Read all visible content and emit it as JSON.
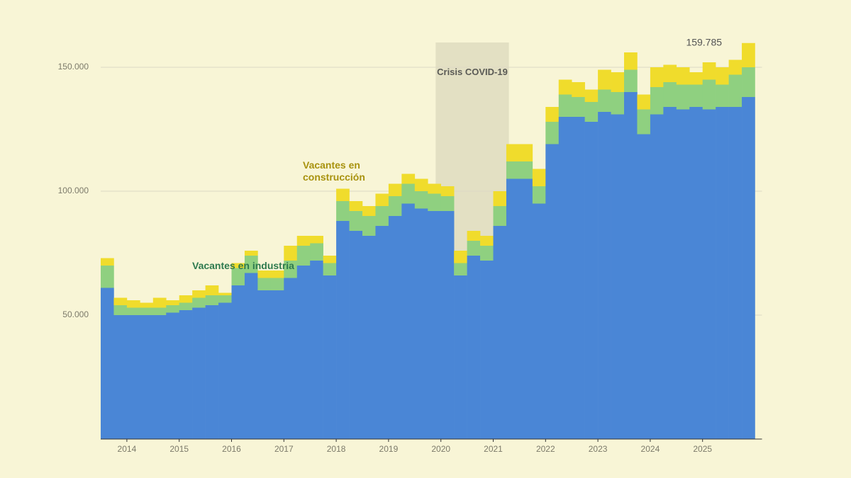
{
  "chart_data": {
    "type": "stacked-bar",
    "x": [
      2013.5,
      2013.75,
      2014,
      2014.25,
      2014.5,
      2014.75,
      2015,
      2015.25,
      2015.5,
      2015.75,
      2016,
      2016.25,
      2016.5,
      2016.75,
      2017,
      2017.25,
      2017.5,
      2017.75,
      2018,
      2018.25,
      2018.5,
      2018.75,
      2019,
      2019.25,
      2019.5,
      2019.75,
      2020,
      2020.25,
      2020.5,
      2020.75,
      2021,
      2021.25,
      2021.5,
      2021.75,
      2022,
      2022.25,
      2022.5,
      2022.75,
      2023,
      2023.25,
      2023.5,
      2023.75,
      2024,
      2024.25,
      2024.5,
      2024.75,
      2025,
      2025.25,
      2025.5,
      2025.75
    ],
    "series": [
      {
        "color": "#4a86d6",
        "values": [
          61000,
          50000,
          50000,
          50000,
          50000,
          51000,
          52000,
          53000,
          54000,
          55000,
          62000,
          67000,
          60000,
          60000,
          65000,
          70000,
          72000,
          66000,
          88000,
          84000,
          82000,
          86000,
          90000,
          95000,
          93000,
          92000,
          92000,
          66000,
          74000,
          72000,
          86000,
          105000,
          105000,
          95000,
          119000,
          130000,
          130000,
          128000,
          132000,
          131000,
          140000,
          123000,
          131000,
          134000,
          133000,
          134000,
          133000,
          134000,
          134000,
          138000
        ]
      },
      {
        "name": "Vacantes en industria",
        "color": "#8fd080",
        "values": [
          9000,
          4000,
          3000,
          3000,
          3000,
          3000,
          3000,
          4000,
          4000,
          3000,
          7000,
          7000,
          5000,
          5000,
          7000,
          8000,
          7000,
          5000,
          8000,
          8000,
          8000,
          8000,
          8000,
          8000,
          7000,
          7000,
          6000,
          5000,
          6000,
          6000,
          8000,
          7000,
          7000,
          7000,
          9000,
          9000,
          8000,
          8000,
          9000,
          9000,
          9000,
          10000,
          11000,
          10000,
          10000,
          9000,
          12000,
          9000,
          13000,
          12000
        ]
      },
      {
        "name": "Vacantes en construcción",
        "color": "#f0dc2c",
        "values": [
          3000,
          3000,
          3000,
          2000,
          4000,
          2000,
          3000,
          3000,
          4000,
          1000,
          2000,
          2000,
          3000,
          3000,
          6000,
          4000,
          3000,
          3000,
          5000,
          4000,
          4000,
          5000,
          5000,
          4000,
          5000,
          4000,
          4000,
          5000,
          4000,
          4000,
          6000,
          7000,
          7000,
          7000,
          6000,
          6000,
          6000,
          5000,
          8000,
          8000,
          7000,
          6000,
          8000,
          7000,
          7000,
          5000,
          7000,
          7000,
          6000,
          9785
        ]
      }
    ],
    "total_label": {
      "value": 159785,
      "label": "159.785"
    },
    "shade": {
      "label": "Crisis COVID-19",
      "x": [
        2019.9,
        2021.3
      ]
    },
    "xlim": [
      2013.5,
      2026
    ],
    "xticks": [
      2014,
      2015,
      2016,
      2017,
      2018,
      2019,
      2020,
      2021,
      2022,
      2023,
      2024,
      2025
    ],
    "ylim": [
      0,
      160000
    ],
    "yticks": [
      {
        "value": 50000,
        "label": "50.000"
      },
      {
        "value": 100000,
        "label": "100.000"
      },
      {
        "value": 150000,
        "label": "150.000"
      }
    ],
    "grid": true
  }
}
